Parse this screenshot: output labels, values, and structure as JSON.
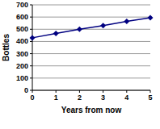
{
  "chart_data": {
    "type": "line",
    "x": [
      0,
      1,
      2,
      3,
      4,
      5
    ],
    "values": [
      430,
      465,
      500,
      530,
      565,
      595
    ],
    "color": "#000080",
    "marker": "diamond",
    "x_label": "Years from now",
    "y_label": "Bottles",
    "xlim": [
      0,
      5
    ],
    "xticks": [
      0,
      1,
      2,
      3,
      4,
      5
    ],
    "ylim": [
      0,
      700
    ],
    "yticks": [
      0,
      100,
      200,
      300,
      400,
      500,
      600,
      700
    ],
    "grid": true
  }
}
